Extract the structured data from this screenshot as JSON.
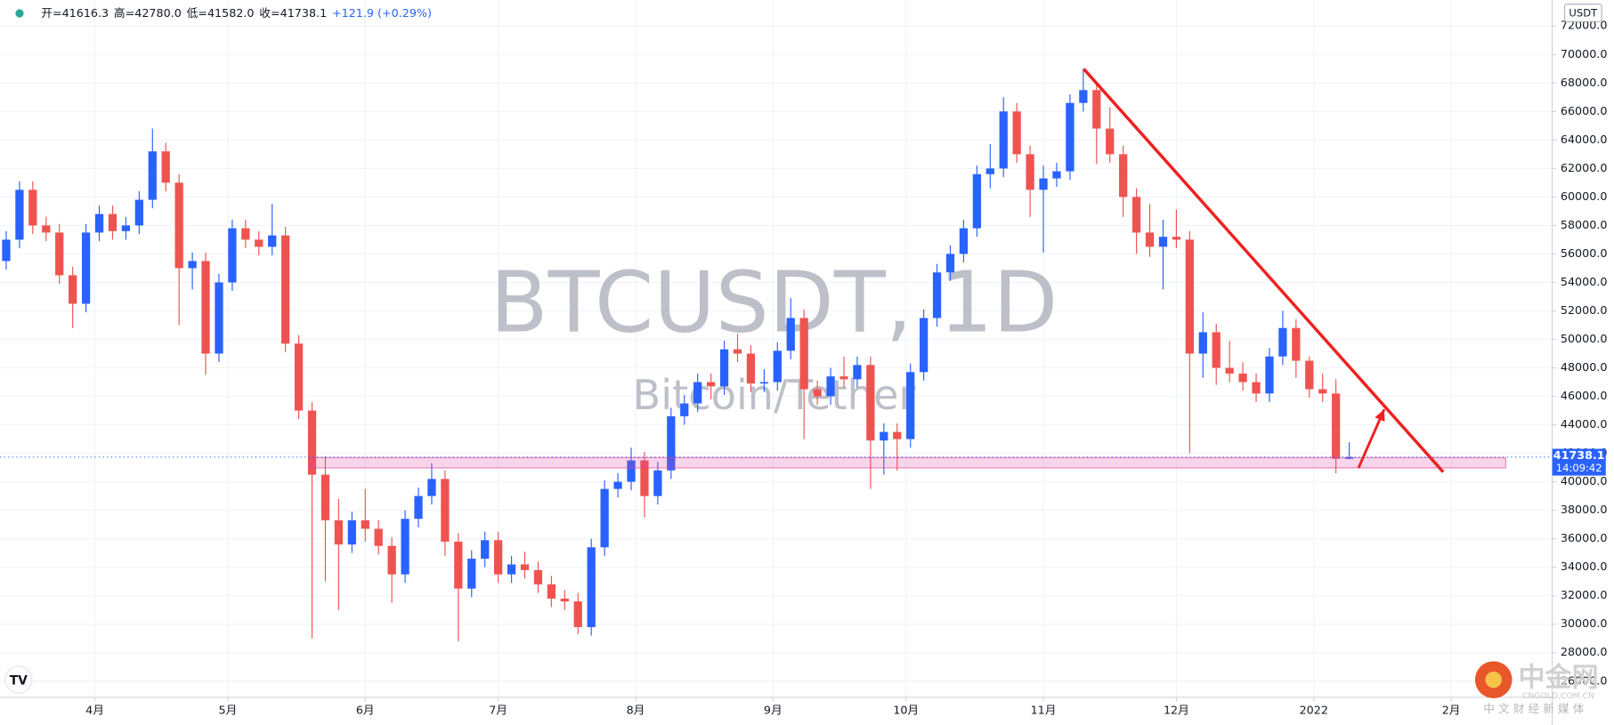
{
  "chart_data": {
    "type": "candlestick",
    "title": "BTCUSDT, 1D",
    "subtitle": "Bitcoin/Tether",
    "currency": "USDT",
    "ohlc_legend": [
      "开=41616.3",
      "高=42780.0",
      "低=41582.0",
      "收=41738.1",
      "+121.9 (+0.29%)"
    ],
    "countdown": "14:09:42",
    "up_color": "#2962ff",
    "down_color": "#ef5350",
    "grid": true,
    "x": [
      11,
      14,
      17,
      20,
      23,
      26,
      29,
      32,
      35,
      38,
      41,
      44,
      47,
      50,
      53,
      56,
      59,
      62,
      65,
      68,
      71,
      74,
      77,
      80,
      83,
      86,
      89,
      92,
      95,
      98,
      101,
      104,
      107,
      110,
      113,
      116,
      119,
      122,
      125,
      128,
      131,
      134,
      137,
      140,
      143,
      146,
      149,
      152,
      155,
      158,
      161,
      164,
      167,
      170,
      173,
      176,
      179,
      182,
      185,
      188,
      191,
      194,
      197,
      200,
      203,
      206,
      209,
      212,
      215,
      218,
      221,
      224,
      227,
      230,
      233,
      236,
      239,
      242,
      245,
      248,
      251,
      254,
      257,
      260,
      263,
      266,
      269,
      272,
      275,
      278,
      281,
      284,
      287,
      290,
      293,
      296,
      299,
      302,
      305,
      308,
      311,
      314
    ],
    "open": [
      55500,
      57000,
      60500,
      58000,
      57500,
      54500,
      52500,
      57500,
      58800,
      57600,
      58000,
      59800,
      63200,
      61000,
      55000,
      55500,
      49000,
      54000,
      57800,
      57000,
      56500,
      57300,
      49700,
      45000,
      40500,
      37300,
      35600,
      37300,
      36700,
      35500,
      33500,
      37400,
      39000,
      40200,
      35800,
      32500,
      34600,
      35900,
      33500,
      34200,
      33800,
      32800,
      31800,
      31600,
      29800,
      35400,
      39500,
      40000,
      41500,
      39000,
      40800,
      44600,
      45500,
      47000,
      46700,
      49300,
      49000,
      46900,
      47000,
      49200,
      51500,
      46500,
      46000,
      47400,
      47200,
      48200,
      42900,
      43500,
      43000,
      47700,
      51500,
      54700,
      56000,
      57800,
      61600,
      62000,
      66000,
      63000,
      60500,
      61300,
      61800,
      66600,
      67500,
      64800,
      63000,
      60000,
      57500,
      56500,
      57200,
      57000,
      49000,
      50500,
      48000,
      47600,
      47000,
      46200,
      48800,
      50800,
      48500,
      46500,
      46200,
      41616.3
    ],
    "high": [
      57600,
      61100,
      61100,
      58600,
      58100,
      55100,
      58100,
      59400,
      59400,
      58600,
      60400,
      64800,
      63800,
      61600,
      56100,
      56100,
      54600,
      58400,
      58400,
      57600,
      59500,
      57900,
      50300,
      45600,
      41800,
      38800,
      37900,
      39500,
      37300,
      36100,
      38000,
      39600,
      41300,
      40800,
      36400,
      35200,
      36500,
      36500,
      34800,
      35100,
      34400,
      33400,
      32400,
      32200,
      36000,
      40100,
      40600,
      42400,
      42100,
      41400,
      45200,
      46100,
      47600,
      47600,
      49900,
      50400,
      49600,
      47900,
      49800,
      52900,
      52100,
      47100,
      48000,
      48800,
      48800,
      48800,
      44100,
      44100,
      48300,
      52100,
      55300,
      56600,
      58400,
      62200,
      63700,
      67000,
      66600,
      63600,
      62200,
      62400,
      67200,
      69000,
      68100,
      66300,
      63600,
      60600,
      59500,
      58400,
      59100,
      57600,
      51900,
      51100,
      49900,
      48400,
      47600,
      49400,
      52000,
      51400,
      48800,
      47600,
      47200,
      42780
    ],
    "low": [
      54900,
      56400,
      57400,
      56900,
      53900,
      50800,
      51900,
      56900,
      57000,
      57000,
      57400,
      59200,
      60400,
      51000,
      53500,
      47500,
      48400,
      53400,
      56400,
      55900,
      55900,
      49100,
      44400,
      29000,
      33000,
      31000,
      35000,
      35800,
      34900,
      31500,
      32900,
      36800,
      38400,
      34800,
      28800,
      31900,
      34000,
      32900,
      32900,
      33200,
      32200,
      31200,
      31000,
      29300,
      29200,
      34800,
      38900,
      39400,
      37500,
      38400,
      40200,
      44000,
      44900,
      45800,
      46100,
      48400,
      46300,
      46300,
      46400,
      48600,
      43000,
      45400,
      45400,
      46600,
      46600,
      39500,
      40500,
      40800,
      42400,
      47100,
      50900,
      54100,
      55400,
      57200,
      60600,
      61400,
      62400,
      58600,
      56100,
      60700,
      61200,
      66000,
      62300,
      62400,
      58600,
      56000,
      55800,
      53500,
      56400,
      42000,
      47300,
      46800,
      47000,
      46400,
      45600,
      45600,
      48200,
      47300,
      45900,
      45600,
      40600,
      41582
    ],
    "close": [
      57000,
      60500,
      58000,
      57500,
      54500,
      52500,
      57500,
      58800,
      57600,
      58000,
      59800,
      63200,
      61000,
      55000,
      55500,
      49000,
      54000,
      57800,
      57000,
      56500,
      57300,
      49700,
      45000,
      40500,
      37300,
      35600,
      37300,
      36700,
      35500,
      33500,
      37400,
      39000,
      40200,
      35800,
      32500,
      34600,
      35900,
      33500,
      34200,
      33800,
      32800,
      31800,
      31600,
      29800,
      35400,
      39500,
      40000,
      41500,
      39000,
      40800,
      44600,
      45500,
      47000,
      46700,
      49300,
      49000,
      46900,
      47000,
      49200,
      51500,
      46500,
      46000,
      47400,
      47200,
      48200,
      42900,
      43500,
      43000,
      47700,
      51500,
      54700,
      56000,
      57800,
      61600,
      62000,
      66000,
      63000,
      60500,
      61300,
      61800,
      66600,
      67500,
      64800,
      63000,
      60000,
      57500,
      56500,
      57200,
      57000,
      49000,
      50500,
      48000,
      47600,
      47000,
      46200,
      48800,
      50800,
      48500,
      46500,
      46200,
      41616.3,
      41738.1
    ],
    "xlim": [
      9.6,
      359.8
    ],
    "ylim": [
      24874,
      73827
    ],
    "xticks": [
      {
        "value": 31,
        "label": "4月"
      },
      {
        "value": 61,
        "label": "5月"
      },
      {
        "value": 92,
        "label": "6月"
      },
      {
        "value": 122,
        "label": "7月"
      },
      {
        "value": 153,
        "label": "8月"
      },
      {
        "value": 184,
        "label": "9月"
      },
      {
        "value": 214,
        "label": "10月"
      },
      {
        "value": 245,
        "label": "11月"
      },
      {
        "value": 275,
        "label": "12月"
      },
      {
        "value": 306,
        "label": "2022"
      },
      {
        "value": 337,
        "label": "2月"
      }
    ],
    "yticks": [
      {
        "value": 26000,
        "label": "26000.0"
      },
      {
        "value": 28000,
        "label": "28000.0"
      },
      {
        "value": 30000,
        "label": "30000.0"
      },
      {
        "value": 32000,
        "label": "32000.0"
      },
      {
        "value": 34000,
        "label": "34000.0"
      },
      {
        "value": 36000,
        "label": "36000.0"
      },
      {
        "value": 38000,
        "label": "38000.0"
      },
      {
        "value": 40000,
        "label": "40000.0"
      },
      {
        "value": 42000,
        "label": "42000.0"
      },
      {
        "value": 44000,
        "label": "44000.0"
      },
      {
        "value": 46000,
        "label": "46000.0"
      },
      {
        "value": 48000,
        "label": "48000.0"
      },
      {
        "value": 50000,
        "label": "50000.0"
      },
      {
        "value": 52000,
        "label": "52000.0"
      },
      {
        "value": 54000,
        "label": "54000.0"
      },
      {
        "value": 56000,
        "label": "56000.0"
      },
      {
        "value": 58000,
        "label": "58000.0"
      },
      {
        "value": 60000,
        "label": "60000.0"
      },
      {
        "value": 62000,
        "label": "62000.0"
      },
      {
        "value": 64000,
        "label": "64000.0"
      },
      {
        "value": 66000,
        "label": "66000.0"
      },
      {
        "value": 68000,
        "label": "68000.0"
      },
      {
        "value": 70000,
        "label": "70000.0"
      },
      {
        "value": 72000,
        "label": "72000.0"
      }
    ],
    "zone": {
      "x": [
        79.3,
        349.3
      ],
      "y": [
        40975,
        41697
      ],
      "color": "#e040a0"
    },
    "trendline": {
      "x": [
        254.1,
        335.2
      ],
      "y": [
        68990,
        40686
      ],
      "color": "#f02020"
    },
    "arrow": {
      "x": [
        316.1,
        321.9
      ],
      "y": [
        40975,
        45090
      ],
      "color": "#f02020"
    }
  },
  "watermark": {
    "logo": "中金网",
    "url": "CNGOLD.COM.CN",
    "tagline": "中 文 财 经 新 媒 体"
  }
}
